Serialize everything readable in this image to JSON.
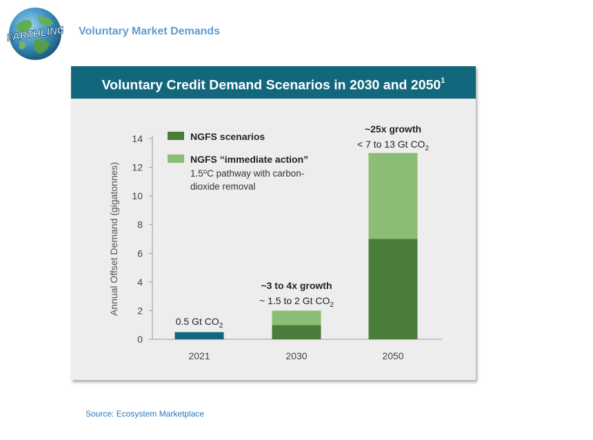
{
  "header": {
    "logo_text": "EARTHLING",
    "title": "Voluntary Market Demands"
  },
  "source": "Source: Ecosystem Marketplace",
  "colors": {
    "banner": "#12677c",
    "ngfs": "#4a7d3a",
    "immediate": "#8bbe74",
    "bar_2021": "#12677c",
    "title": "#5b9bd5"
  },
  "chart_data": {
    "type": "bar",
    "title": "Voluntary Credit Demand Scenarios in 2030 and 2050",
    "title_sup": "1",
    "ylabel": "Annual Offset Demand (gigatonnes)",
    "xlabel": "",
    "ylim": [
      0,
      14
    ],
    "yticks": [
      0,
      2,
      4,
      6,
      8,
      10,
      12,
      14
    ],
    "categories": [
      "2021",
      "2030",
      "2050"
    ],
    "series": [
      {
        "name": "NGFS scenarios",
        "values": [
          0.5,
          1,
          7
        ]
      },
      {
        "name": "NGFS “immediate action”",
        "sublabel": [
          "1.5⁰C pathway with carbon-",
          "dioxide removal"
        ],
        "values": [
          0,
          1,
          6
        ]
      }
    ],
    "annotations": [
      {
        "category": "2021",
        "bold": "",
        "text": "0.5 Gt CO",
        "sub": "2"
      },
      {
        "category": "2030",
        "bold": "~3 to 4x growth",
        "text": "~ 1.5 to 2 Gt CO",
        "sub": "2"
      },
      {
        "category": "2050",
        "bold": "~25x growth",
        "text": "< 7 to 13 Gt CO",
        "sub": "2"
      }
    ],
    "legend_position": "top-left"
  }
}
